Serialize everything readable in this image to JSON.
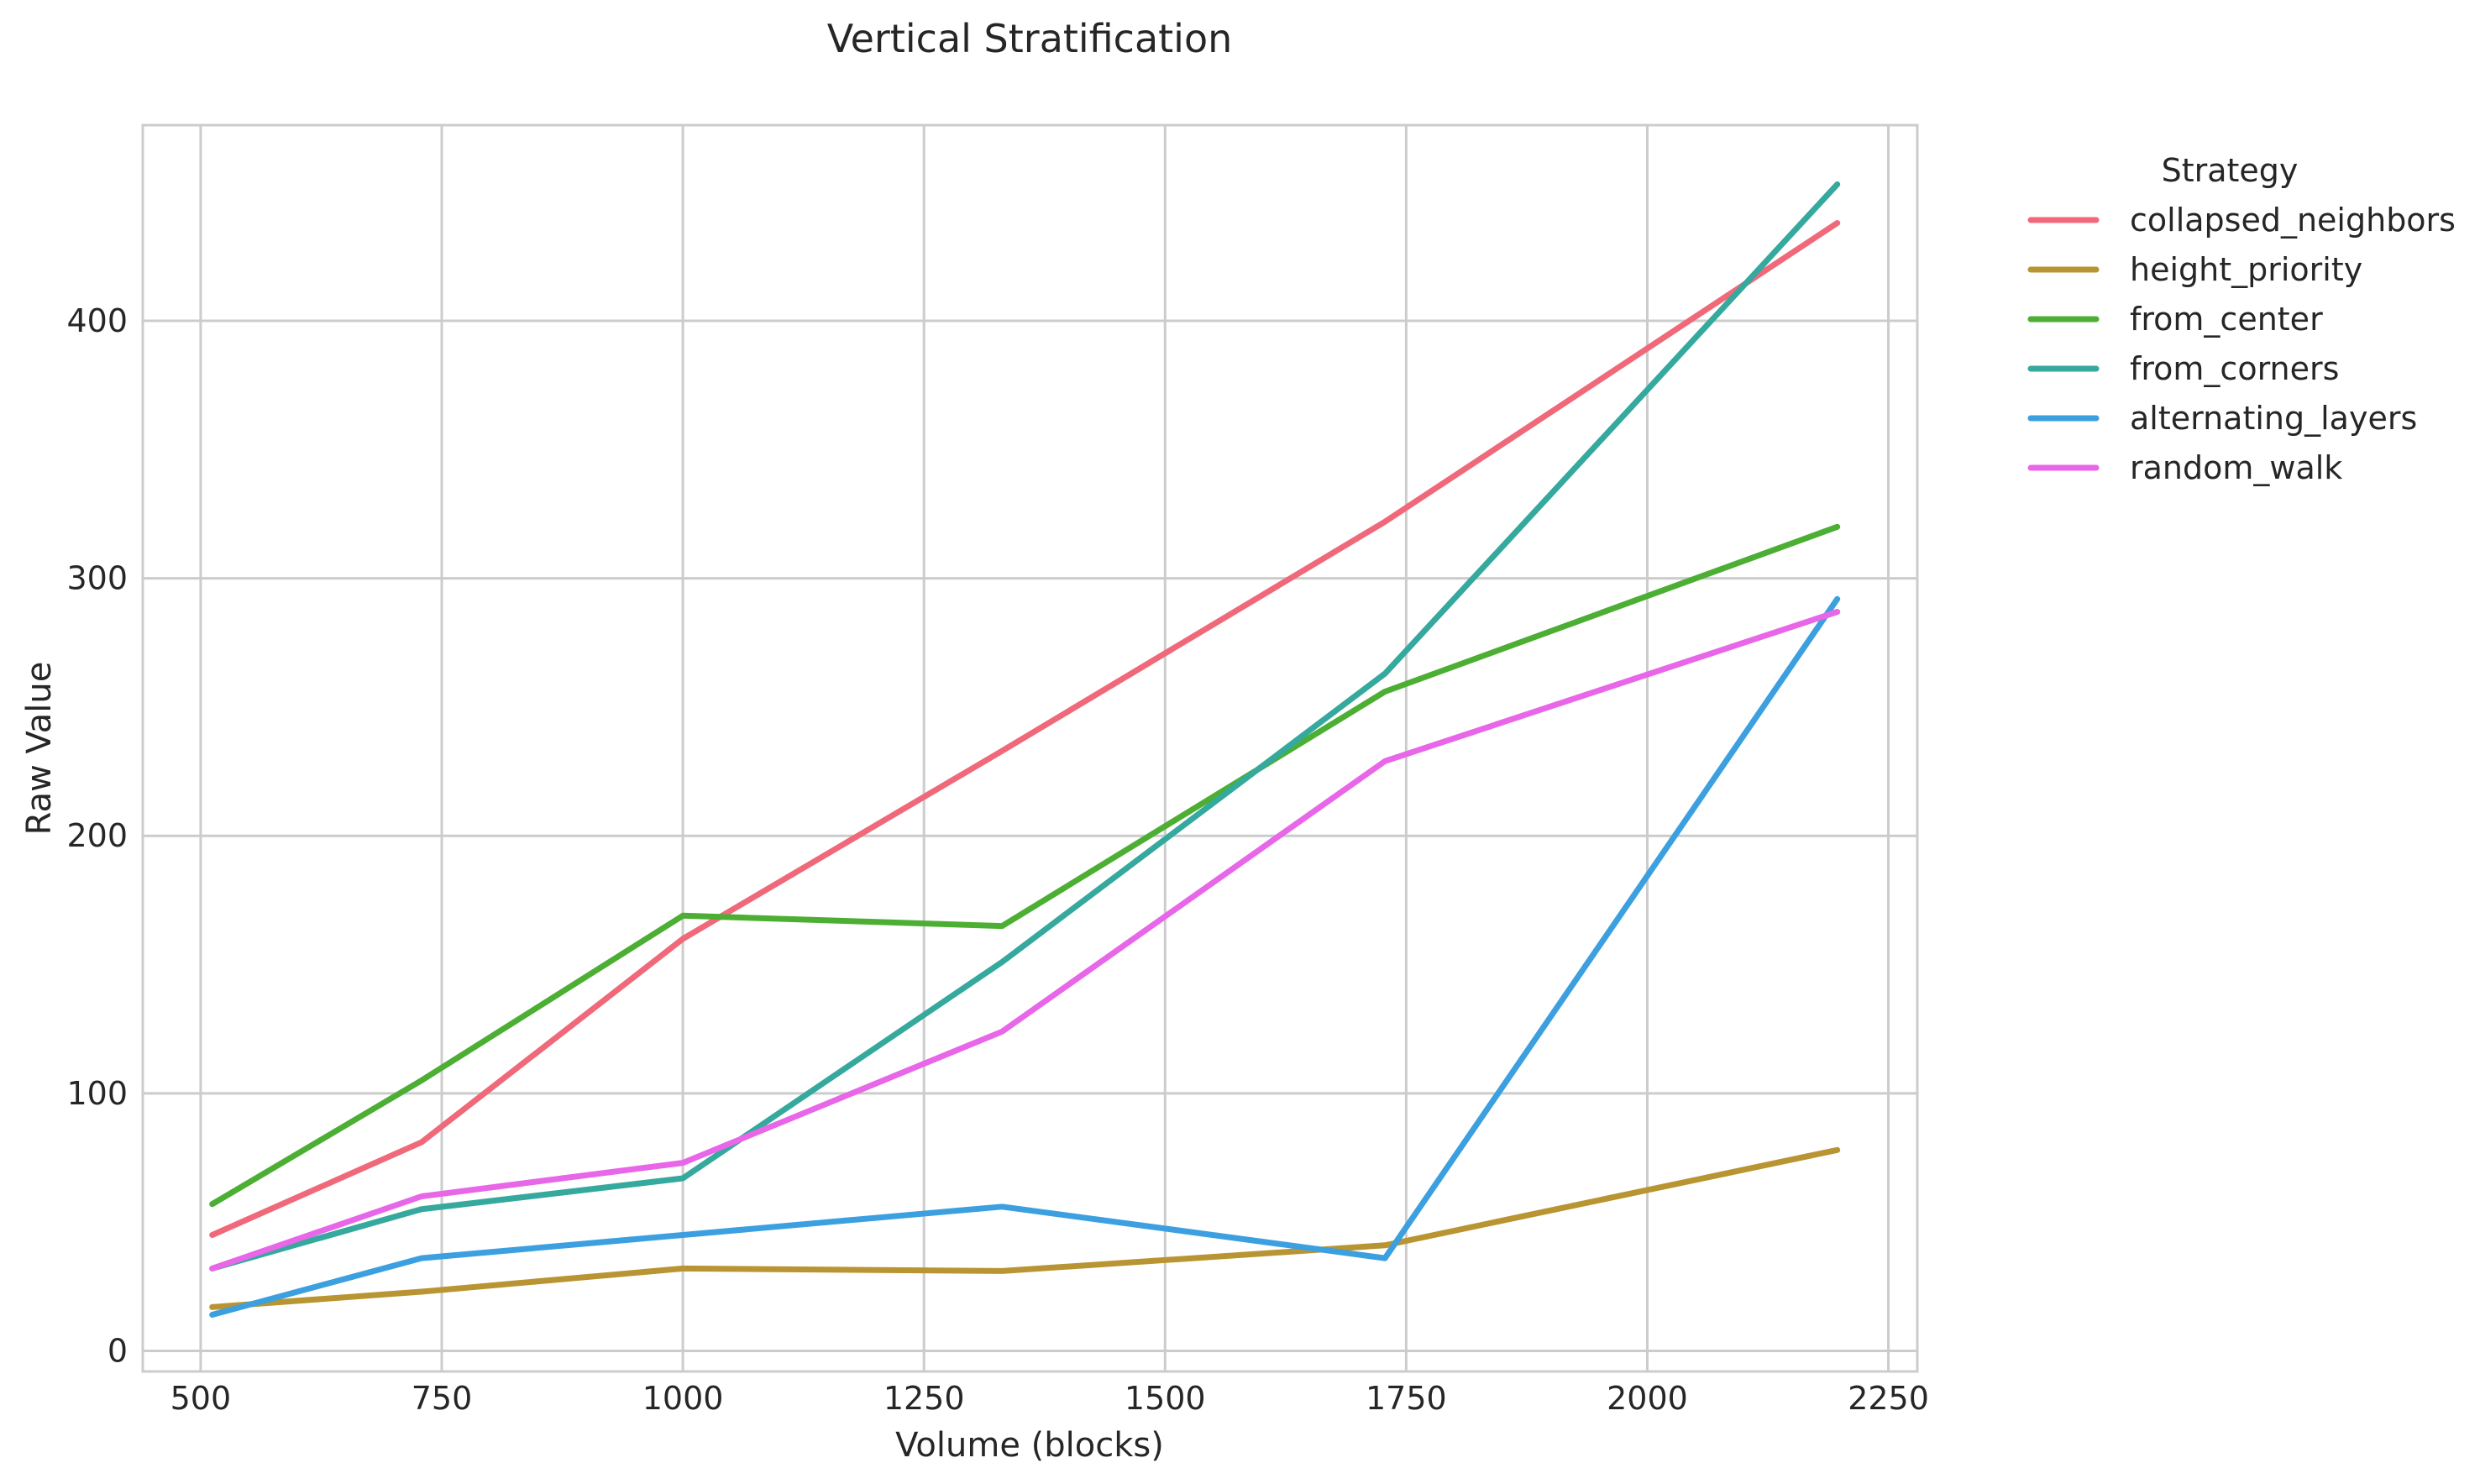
{
  "chart_data": {
    "type": "line",
    "title": "Vertical Stratification",
    "xlabel": "Volume (blocks)",
    "ylabel": "Raw Value",
    "xlim": [
      440,
      2280
    ],
    "ylim": [
      -8,
      476
    ],
    "xticks": [
      500,
      750,
      1000,
      1250,
      1500,
      1750,
      2000,
      2250
    ],
    "yticks": [
      0,
      100,
      200,
      300,
      400
    ],
    "x": [
      512,
      729,
      1000,
      1331,
      1728,
      2197
    ],
    "grid": true,
    "legend": {
      "title": "Strategy",
      "position": "outside-top-right"
    },
    "series": [
      {
        "name": "collapsed_neighbors",
        "color": "#f0697a",
        "values": [
          45,
          81,
          160,
          233,
          322,
          438
        ]
      },
      {
        "name": "height_priority",
        "color": "#b89532",
        "values": [
          17,
          23,
          32,
          31,
          41,
          78
        ]
      },
      {
        "name": "from_center",
        "color": "#4caf34",
        "values": [
          57,
          105,
          169,
          165,
          256,
          320
        ]
      },
      {
        "name": "from_corners",
        "color": "#35a99d",
        "values": [
          32,
          55,
          67,
          151,
          263,
          453
        ]
      },
      {
        "name": "alternating_layers",
        "color": "#3ca0e0",
        "values": [
          14,
          36,
          45,
          56,
          36,
          292
        ]
      },
      {
        "name": "random_walk",
        "color": "#e866e8",
        "values": [
          32,
          60,
          73,
          124,
          229,
          287
        ]
      }
    ]
  }
}
